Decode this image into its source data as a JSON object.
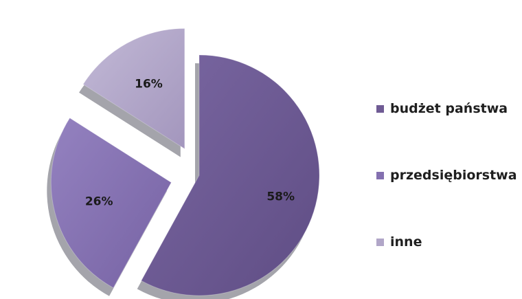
{
  "chart_data": {
    "type": "pie",
    "exploded": true,
    "style": "3d",
    "legend_position": "right",
    "slices": [
      {
        "name": "budżet państwa",
        "value": 58,
        "label": "58%",
        "color": "#6f5b94"
      },
      {
        "name": "przedsiębiorstwa",
        "value": 26,
        "label": "26%",
        "color": "#8470b0"
      },
      {
        "name": "inne",
        "value": 16,
        "label": "16%",
        "color": "#b1a6c8"
      }
    ]
  }
}
